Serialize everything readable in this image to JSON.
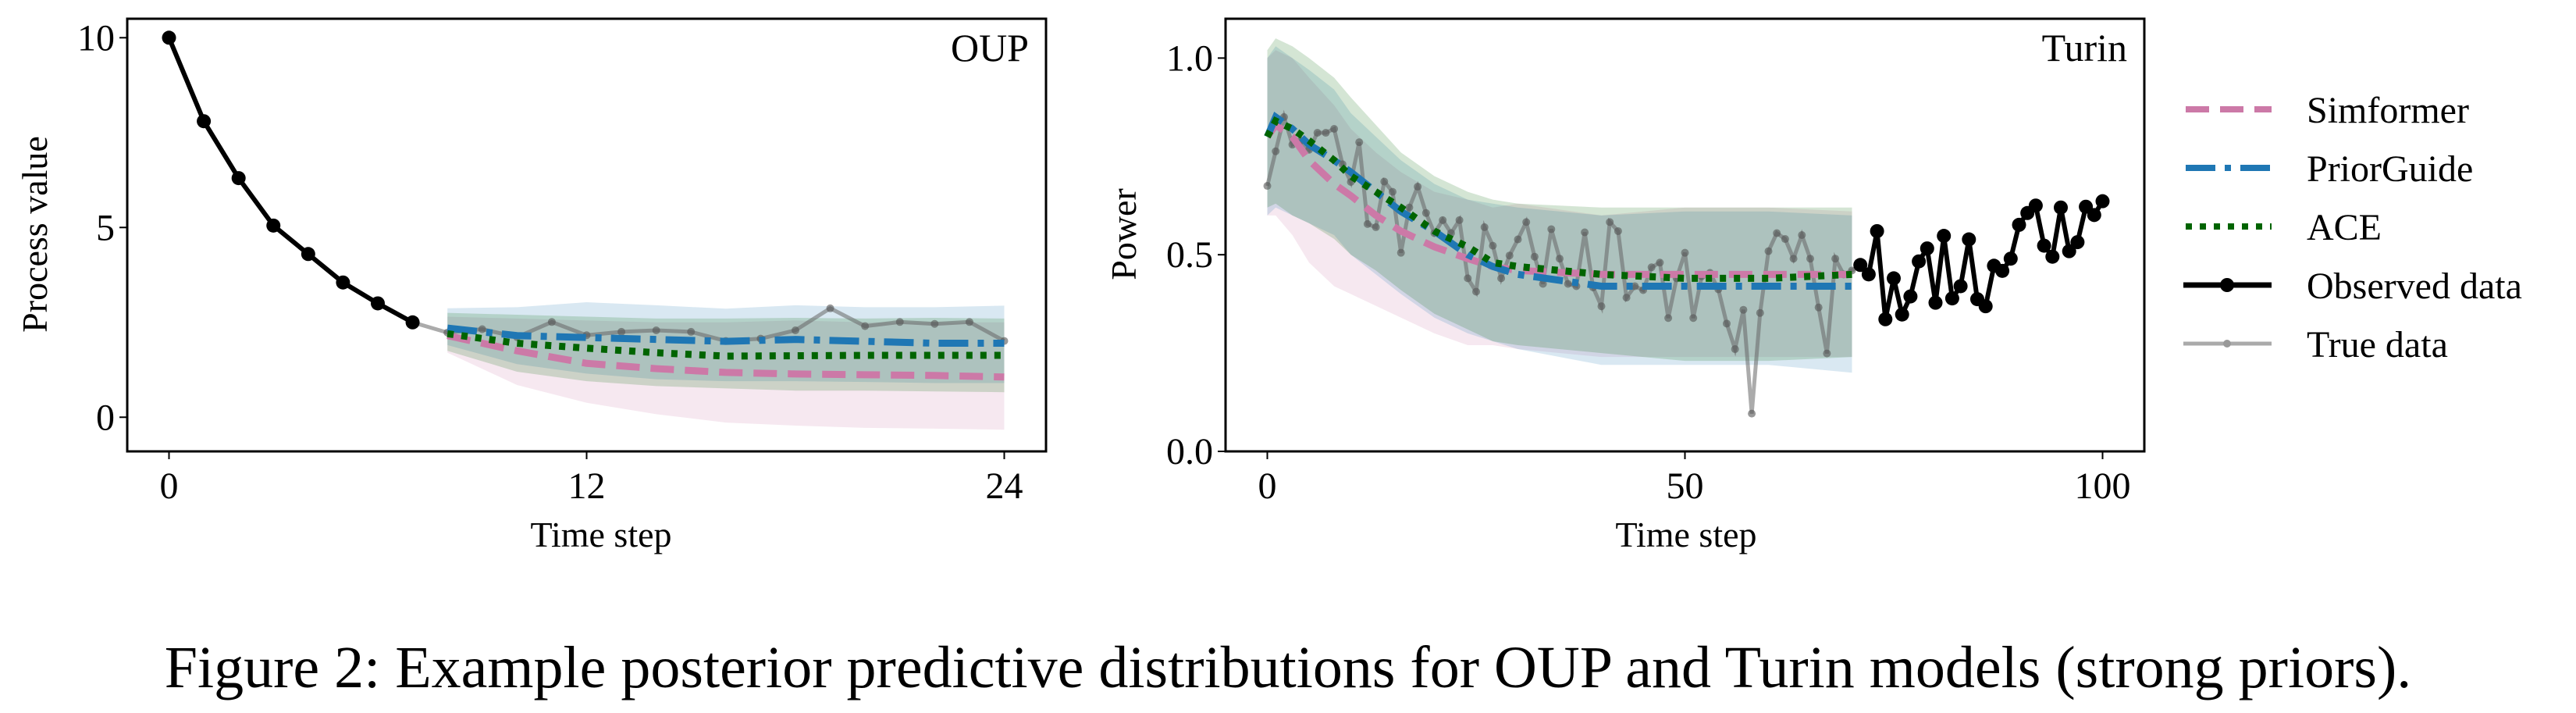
{
  "caption": "Figure 2: Example posterior predictive distributions for OUP and Turin models (strong priors).",
  "legend": {
    "placement": "right",
    "items": [
      {
        "label": "Simformer",
        "style": "dashed",
        "color": "#cc79a7"
      },
      {
        "label": "PriorGuide",
        "style": "dashdot",
        "color": "#1f77b4"
      },
      {
        "label": "ACE",
        "style": "dotted",
        "color": "#006400"
      },
      {
        "label": "Observed data",
        "style": "solid-marker",
        "color": "#000000"
      },
      {
        "label": "True data",
        "style": "solid-marker-light",
        "color": "#999999"
      }
    ]
  },
  "chart_data": [
    {
      "type": "line",
      "title": "OUP",
      "xlabel": "Time step",
      "ylabel": "Process value",
      "xlim": [
        -1.2,
        25.2
      ],
      "ylim": [
        -0.9,
        10.5
      ],
      "xticks": [
        "0",
        "12",
        "24"
      ],
      "yticks": [
        "0",
        "5",
        "10"
      ],
      "grid": false,
      "observed": {
        "x": [
          0,
          1,
          2,
          3,
          4,
          5,
          6,
          7
        ],
        "y": [
          10,
          7.8,
          6.3,
          5.05,
          4.3,
          3.55,
          3.0,
          2.5
        ]
      },
      "true": {
        "x": [
          7,
          8,
          9,
          10,
          11,
          12,
          13,
          14,
          15,
          16,
          17,
          18,
          19,
          20,
          21,
          22,
          23,
          24
        ],
        "y": [
          2.5,
          2.23,
          2.32,
          2.11,
          2.51,
          2.16,
          2.25,
          2.29,
          2.25,
          2.01,
          2.07,
          2.29,
          2.87,
          2.4,
          2.51,
          2.46,
          2.51,
          2.01
        ]
      },
      "series": [
        {
          "name": "Simformer",
          "x": [
            8,
            10,
            12,
            14,
            16,
            18,
            20,
            22,
            24
          ],
          "mean": [
            2.15,
            1.75,
            1.42,
            1.28,
            1.18,
            1.14,
            1.12,
            1.1,
            1.06
          ],
          "lower": [
            1.7,
            0.85,
            0.38,
            0.08,
            -0.14,
            -0.22,
            -0.28,
            -0.3,
            -0.33
          ],
          "upper": [
            2.65,
            2.6,
            2.55,
            2.5,
            2.5,
            2.55,
            2.5,
            2.5,
            2.5
          ]
        },
        {
          "name": "PriorGuide",
          "x": [
            8,
            10,
            12,
            14,
            16,
            18,
            20,
            22,
            24
          ],
          "mean": [
            2.35,
            2.15,
            2.1,
            2.05,
            2.0,
            2.05,
            2.0,
            1.95,
            1.95
          ],
          "lower": [
            1.9,
            1.4,
            1.15,
            1.0,
            0.95,
            0.95,
            0.93,
            0.9,
            0.9
          ],
          "upper": [
            2.87,
            2.9,
            3.03,
            2.95,
            2.86,
            2.95,
            2.9,
            2.9,
            2.94
          ]
        },
        {
          "name": "ACE",
          "x": [
            8,
            10,
            12,
            14,
            16,
            18,
            20,
            22,
            24
          ],
          "mean": [
            2.2,
            1.95,
            1.82,
            1.7,
            1.61,
            1.62,
            1.63,
            1.63,
            1.63
          ],
          "lower": [
            1.75,
            1.2,
            0.95,
            0.82,
            0.76,
            0.7,
            0.7,
            0.68,
            0.66
          ],
          "upper": [
            2.75,
            2.7,
            2.65,
            2.6,
            2.6,
            2.62,
            2.6,
            2.62,
            2.6
          ]
        }
      ]
    },
    {
      "type": "line",
      "title": "Turin",
      "xlabel": "Time step",
      "ylabel": "Power",
      "xlim": [
        -5,
        105
      ],
      "ylim": [
        0,
        1.1
      ],
      "xticks": [
        "0",
        "50",
        "100"
      ],
      "yticks": [
        "0.0",
        "0.5",
        "1.0"
      ],
      "grid": false,
      "observed": {
        "x": [
          71,
          72,
          73,
          74,
          75,
          76,
          77,
          78,
          79,
          80,
          81,
          82,
          83,
          84,
          85,
          86,
          87,
          88,
          89,
          90,
          91,
          92,
          93,
          94,
          95,
          96,
          97,
          98,
          99,
          100
        ],
        "y": [
          0.474,
          0.45,
          0.56,
          0.336,
          0.44,
          0.348,
          0.394,
          0.483,
          0.516,
          0.378,
          0.548,
          0.389,
          0.42,
          0.539,
          0.387,
          0.369,
          0.472,
          0.459,
          0.49,
          0.576,
          0.606,
          0.625,
          0.523,
          0.495,
          0.62,
          0.509,
          0.532,
          0.622,
          0.601,
          0.636
        ]
      },
      "true": {
        "x": [
          0,
          1,
          2,
          3,
          4,
          5,
          6,
          7,
          8,
          9,
          10,
          11,
          12,
          13,
          14,
          15,
          16,
          17,
          18,
          19,
          20,
          21,
          22,
          23,
          24,
          25,
          26,
          27,
          28,
          29,
          30,
          31,
          32,
          33,
          34,
          35,
          36,
          37,
          38,
          39,
          40,
          41,
          42,
          43,
          44,
          45,
          46,
          47,
          48,
          49,
          50,
          51,
          52,
          53,
          54,
          55,
          56,
          57,
          58,
          59,
          60,
          61,
          62,
          63,
          64,
          65,
          66,
          67,
          68,
          69,
          70,
          71
        ],
        "y": [
          0.675,
          0.763,
          0.85,
          0.78,
          0.79,
          0.767,
          0.81,
          0.81,
          0.82,
          0.73,
          0.685,
          0.786,
          0.578,
          0.57,
          0.686,
          0.66,
          0.505,
          0.62,
          0.673,
          0.606,
          0.555,
          0.588,
          0.555,
          0.588,
          0.44,
          0.406,
          0.57,
          0.523,
          0.44,
          0.498,
          0.539,
          0.583,
          0.495,
          0.426,
          0.565,
          0.49,
          0.426,
          0.42,
          0.557,
          0.417,
          0.369,
          0.583,
          0.56,
          0.391,
          0.42,
          0.41,
          0.468,
          0.48,
          0.339,
          0.44,
          0.505,
          0.339,
          0.445,
          0.454,
          0.412,
          0.325,
          0.26,
          0.36,
          0.096,
          0.352,
          0.509,
          0.555,
          0.54,
          0.49,
          0.55,
          0.49,
          0.366,
          0.249,
          0.49,
          0.45,
          0.46,
          0.474
        ]
      },
      "series": [
        {
          "name": "Simformer",
          "x": [
            0,
            1,
            3,
            5,
            8,
            10,
            13,
            16,
            20,
            24,
            27,
            30,
            40,
            50,
            60,
            70
          ],
          "mean": [
            0.8,
            0.83,
            0.8,
            0.74,
            0.68,
            0.65,
            0.6,
            0.56,
            0.52,
            0.49,
            0.47,
            0.46,
            0.45,
            0.45,
            0.45,
            0.45
          ],
          "lower": [
            0.6,
            0.6,
            0.55,
            0.48,
            0.42,
            0.4,
            0.37,
            0.34,
            0.3,
            0.27,
            0.27,
            0.26,
            0.24,
            0.24,
            0.24,
            0.24
          ],
          "upper": [
            1.0,
            1.02,
            1.0,
            0.95,
            0.88,
            0.82,
            0.76,
            0.71,
            0.66,
            0.64,
            0.62,
            0.63,
            0.6,
            0.62,
            0.62,
            0.61
          ]
        },
        {
          "name": "PriorGuide",
          "x": [
            0,
            1,
            3,
            5,
            8,
            10,
            13,
            16,
            20,
            24,
            27,
            30,
            40,
            50,
            60,
            70
          ],
          "mean": [
            0.8,
            0.85,
            0.82,
            0.78,
            0.74,
            0.71,
            0.66,
            0.61,
            0.56,
            0.5,
            0.47,
            0.45,
            0.42,
            0.42,
            0.42,
            0.42
          ],
          "lower": [
            0.6,
            0.62,
            0.6,
            0.58,
            0.55,
            0.5,
            0.45,
            0.4,
            0.34,
            0.3,
            0.28,
            0.26,
            0.22,
            0.22,
            0.22,
            0.2
          ],
          "upper": [
            1.0,
            1.03,
            1.0,
            0.97,
            0.92,
            0.86,
            0.8,
            0.74,
            0.68,
            0.64,
            0.63,
            0.62,
            0.6,
            0.61,
            0.61,
            0.6
          ]
        },
        {
          "name": "ACE",
          "x": [
            0,
            1,
            3,
            5,
            8,
            10,
            13,
            16,
            20,
            24,
            27,
            30,
            40,
            50,
            60,
            70
          ],
          "mean": [
            0.8,
            0.84,
            0.82,
            0.79,
            0.74,
            0.7,
            0.66,
            0.62,
            0.56,
            0.52,
            0.48,
            0.47,
            0.45,
            0.44,
            0.44,
            0.45
          ],
          "lower": [
            0.62,
            0.63,
            0.6,
            0.58,
            0.54,
            0.5,
            0.46,
            0.41,
            0.35,
            0.31,
            0.28,
            0.27,
            0.25,
            0.23,
            0.23,
            0.24
          ],
          "upper": [
            1.02,
            1.05,
            1.03,
            1.0,
            0.95,
            0.9,
            0.83,
            0.76,
            0.7,
            0.66,
            0.64,
            0.63,
            0.62,
            0.62,
            0.62,
            0.62
          ]
        }
      ]
    }
  ]
}
